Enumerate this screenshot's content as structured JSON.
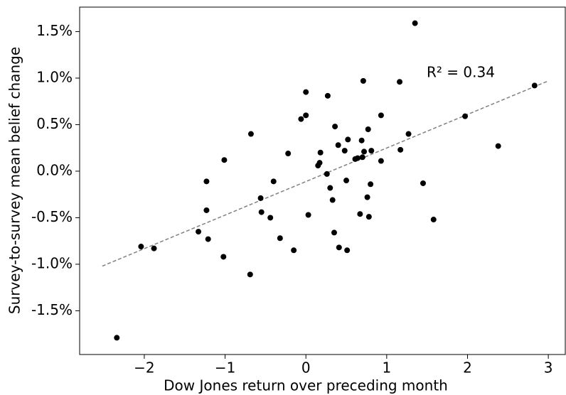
{
  "chart_data": {
    "type": "scatter",
    "x_label": "Dow Jones return over preceding month",
    "y_label": "Survey-to-survey mean belief change",
    "annotation": "R² = 0.34",
    "color": "#000000",
    "fit_color": "#808080",
    "grid": false,
    "xlim": [
      -2.8,
      3.21
    ],
    "ylim": [
      -1.97,
      1.763
    ],
    "xticks": [
      {
        "value": -2,
        "label": "−2"
      },
      {
        "value": -1,
        "label": "−1"
      },
      0,
      1,
      2,
      3
    ],
    "yticks": [
      {
        "value": -1.5,
        "label": "-1.5%"
      },
      {
        "value": -1.0,
        "label": "-1.0%"
      },
      {
        "value": -0.5,
        "label": "-0.5%"
      },
      {
        "value": 0,
        "label": "0.0%"
      },
      {
        "value": 0.5,
        "label": "0.5%"
      },
      {
        "value": 1.0,
        "label": "1.0%"
      },
      {
        "value": 1.5,
        "label": "1.5%"
      }
    ],
    "x": [
      -2.34,
      -2.04,
      -1.88,
      -1.33,
      -1.23,
      -1.23,
      -1.21,
      -1.02,
      -1.01,
      -0.69,
      -0.68,
      -0.56,
      -0.55,
      -0.44,
      -0.4,
      -0.32,
      -0.22,
      -0.15,
      -0.06,
      0.0,
      0.0,
      0.03,
      0.15,
      0.17,
      0.18,
      0.26,
      0.27,
      0.3,
      0.33,
      0.35,
      0.36,
      0.4,
      0.41,
      0.48,
      0.5,
      0.51,
      0.52,
      0.61,
      0.64,
      0.67,
      0.69,
      0.7,
      0.71,
      0.72,
      0.76,
      0.77,
      0.78,
      0.8,
      0.81,
      0.93,
      0.93,
      1.16,
      1.17,
      1.27,
      1.35,
      1.45,
      1.58,
      1.97,
      2.38,
      2.83
    ],
    "values": [
      -1.79,
      -0.81,
      -0.83,
      -0.65,
      -0.11,
      -0.42,
      -0.73,
      -0.92,
      0.12,
      -1.11,
      0.4,
      -0.29,
      -0.44,
      -0.5,
      -0.11,
      -0.72,
      0.19,
      -0.85,
      0.56,
      0.6,
      0.85,
      -0.47,
      0.06,
      0.09,
      0.2,
      -0.03,
      0.81,
      -0.18,
      -0.31,
      -0.66,
      0.48,
      0.28,
      -0.82,
      0.22,
      -0.1,
      -0.85,
      0.34,
      0.13,
      0.14,
      -0.46,
      0.33,
      0.15,
      0.97,
      0.21,
      -0.28,
      0.45,
      -0.49,
      -0.14,
      0.22,
      0.11,
      0.6,
      0.96,
      0.23,
      0.4,
      1.59,
      -0.13,
      -0.52,
      0.59,
      0.27,
      0.92
    ],
    "fit": {
      "x": [
        -2.52,
        3.0
      ],
      "y": [
        -1.02,
        0.97
      ]
    }
  }
}
